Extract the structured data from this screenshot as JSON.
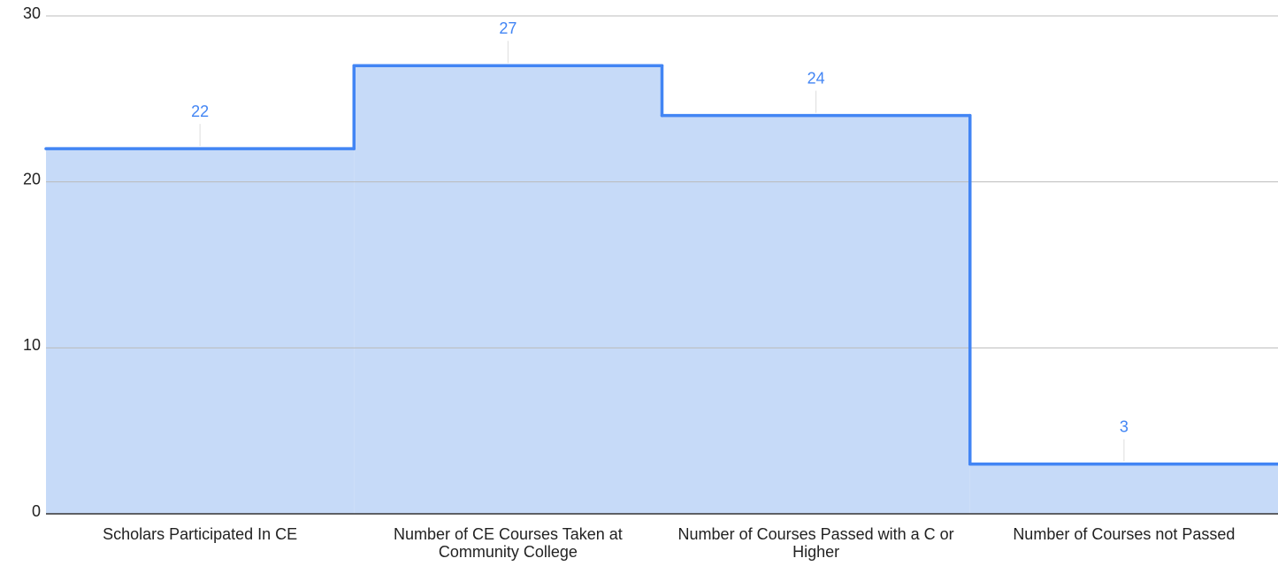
{
  "chart_data": {
    "type": "stepped_area",
    "categories": [
      "Scholars Participated In CE",
      "Number of CE Courses Taken at Community College",
      "Number of Courses Passed with a C or Higher",
      "Number of Courses not Passed"
    ],
    "values": [
      22,
      27,
      24,
      3
    ],
    "color": "#4285f4",
    "fill_color": "#c6daf8",
    "ylim": [
      0,
      30
    ],
    "yticks": [
      0,
      10,
      20,
      30
    ],
    "grid": true,
    "data_labels": true
  }
}
